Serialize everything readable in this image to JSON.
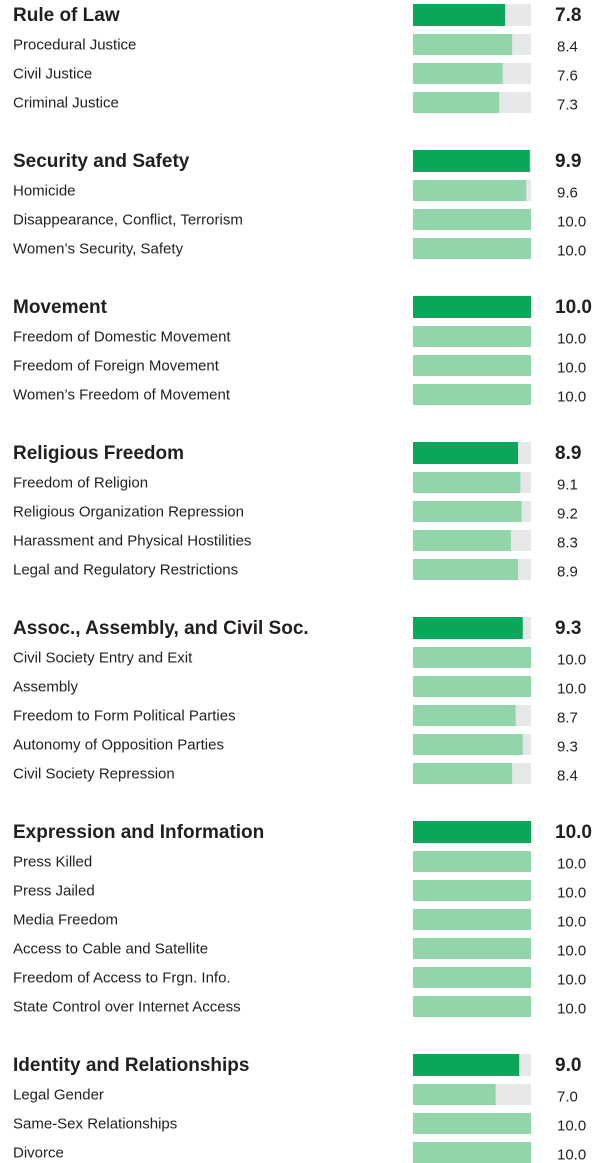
{
  "chart_data": {
    "type": "bar",
    "xlim": [
      0,
      10
    ],
    "colors": {
      "group": "#0aa65a",
      "item": "#93d5ab",
      "track": "#e6e7e8"
    },
    "groups": [
      {
        "name": "Rule of Law",
        "value": 7.8,
        "items": [
          {
            "name": "Procedural Justice",
            "value": 8.4
          },
          {
            "name": "Civil Justice",
            "value": 7.6
          },
          {
            "name": "Criminal Justice",
            "value": 7.3
          }
        ]
      },
      {
        "name": "Security and Safety",
        "value": 9.9,
        "items": [
          {
            "name": "Homicide",
            "value": 9.6
          },
          {
            "name": "Disappearance, Conflict, Terrorism",
            "value": 10,
            "value_label": "10.0"
          },
          {
            "name": "Women’s Security, Safety",
            "value": 10,
            "value_label": "10.0"
          }
        ]
      },
      {
        "name": "Movement",
        "value": 10,
        "value_label": "10.0",
        "items": [
          {
            "name": "Freedom of Domestic Movement",
            "value": 10,
            "value_label": "10.0"
          },
          {
            "name": "Freedom of Foreign Movement",
            "value": 10,
            "value_label": "10.0"
          },
          {
            "name": "Women’s Freedom of Movement",
            "value": 10,
            "value_label": "10.0"
          }
        ]
      },
      {
        "name": "Religious Freedom",
        "value": 8.9,
        "items": [
          {
            "name": "Freedom of Religion",
            "value": 9.1
          },
          {
            "name": "Religious Organization Repression",
            "value": 9.2
          },
          {
            "name": "Harassment and Physical Hostilities",
            "value": 8.3
          },
          {
            "name": "Legal and Regulatory Restrictions",
            "value": 8.9
          }
        ]
      },
      {
        "name": "Assoc., Assembly, and Civil Soc.",
        "value": 9.3,
        "items": [
          {
            "name": "Civil Society Entry and Exit",
            "value": 10,
            "value_label": "10.0"
          },
          {
            "name": "Assembly",
            "value": 10,
            "value_label": "10.0"
          },
          {
            "name": "Freedom to Form Political Parties",
            "value": 8.7
          },
          {
            "name": "Autonomy of Opposition Parties",
            "value": 9.3
          },
          {
            "name": "Civil Society Repression",
            "value": 8.4
          }
        ]
      },
      {
        "name": "Expression and Information",
        "value": 10,
        "value_label": "10.0",
        "items": [
          {
            "name": "Press Killed",
            "value": 10,
            "value_label": "10.0"
          },
          {
            "name": "Press Jailed",
            "value": 10,
            "value_label": "10.0"
          },
          {
            "name": "Media Freedom",
            "value": 10,
            "value_label": "10.0"
          },
          {
            "name": "Access to Cable and Satellite",
            "value": 10,
            "value_label": "10.0"
          },
          {
            "name": "Freedom of Access to Frgn. Info.",
            "value": 10,
            "value_label": "10.0"
          },
          {
            "name": "State Control over Internet Access",
            "value": 10,
            "value_label": "10.0"
          }
        ]
      },
      {
        "name": "Identity and Relationships",
        "value": 9.0,
        "value_label": "9.0",
        "items": [
          {
            "name": "Legal Gender",
            "value": 7.0,
            "value_label": "7.0"
          },
          {
            "name": "Same-Sex Relationships",
            "value": 10,
            "value_label": "10.0"
          },
          {
            "name": "Divorce",
            "value": 10,
            "value_label": "10.0"
          }
        ]
      }
    ]
  }
}
